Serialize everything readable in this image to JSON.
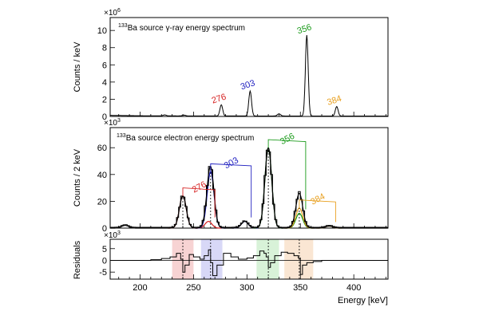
{
  "chart_data": [
    {
      "type": "line",
      "panel": "gamma",
      "title": "133Ba source γ-ray energy spectrum",
      "title_sup": "133",
      "title_rest": "Ba source γ-ray energy spectrum",
      "ylabel": "Counts / keV",
      "y_exponent": "×10",
      "y_exponent_power": "6",
      "xlim": [
        172,
        432
      ],
      "ylim": [
        0,
        11.5
      ],
      "yticks": [
        0,
        2,
        4,
        6,
        8,
        10
      ],
      "peaks": [
        {
          "energy": 276,
          "height": 1.3,
          "label": "276",
          "color": "#d62020"
        },
        {
          "energy": 303,
          "height": 2.9,
          "label": "303",
          "color": "#2020c0"
        },
        {
          "energy": 356,
          "height": 9.4,
          "label": "356",
          "color": "#1a9a1a"
        },
        {
          "energy": 384,
          "height": 1.1,
          "label": "384",
          "color": "#e8a020"
        }
      ],
      "minor_peaks": [
        {
          "energy": 223,
          "height": 0.12
        },
        {
          "energy": 241,
          "height": 0.1
        },
        {
          "energy": 330,
          "height": 0.25
        }
      ]
    },
    {
      "type": "line",
      "panel": "electron",
      "title_sup": "133",
      "title_rest": "Ba source electron energy spectrum",
      "ylabel": "Counts / 2 keV",
      "y_exponent": "×10",
      "y_exponent_power": "3",
      "xlim": [
        172,
        432
      ],
      "ylim": [
        0,
        75
      ],
      "yticks": [
        0,
        20,
        40,
        60
      ],
      "peaks": [
        {
          "energy": 240,
          "height": 24,
          "label": "276",
          "color": "#d62020"
        },
        {
          "energy": 266,
          "height": 42,
          "label": "303",
          "color": "#2020c0"
        },
        {
          "energy": 320,
          "height": 60,
          "label": "356",
          "color": "#1a9a1a"
        },
        {
          "energy": 349,
          "height": 15,
          "label": "384",
          "color": "#e8a020"
        }
      ],
      "secondary_peaks": [
        {
          "energy": 186,
          "height": 2,
          "color": "#000000"
        },
        {
          "energy": 264,
          "height": 5,
          "color": "#d62020"
        },
        {
          "energy": 298,
          "height": 5,
          "color": "#2020c0"
        },
        {
          "energy": 349,
          "height": 11,
          "color": "#1a9a1a"
        },
        {
          "energy": 377,
          "height": 1.5,
          "color": "#e8a020"
        }
      ],
      "dashed_lines": [
        240,
        266,
        320,
        349
      ]
    },
    {
      "type": "line",
      "panel": "residuals",
      "ylabel": "Residuals",
      "y_exponent": "×10",
      "y_exponent_power": "3",
      "xlabel": "Energy [keV]",
      "xlim": [
        172,
        432
      ],
      "ylim": [
        -8,
        9
      ],
      "yticks": [
        -5,
        0,
        5
      ],
      "xticks": [
        200,
        250,
        300,
        350,
        400
      ],
      "bands": [
        {
          "from": 230,
          "to": 250,
          "color": "#f4c0c0"
        },
        {
          "from": 257,
          "to": 277,
          "color": "#c8c8f4"
        },
        {
          "from": 309,
          "to": 330,
          "color": "#c8ecc8"
        },
        {
          "from": 335,
          "to": 362,
          "color": "#f8dcc0"
        }
      ],
      "dashed_lines": [
        240,
        266,
        320,
        349
      ],
      "x": [
        172,
        200,
        210,
        220,
        228,
        234,
        238,
        240,
        242,
        246,
        250,
        256,
        260,
        264,
        266,
        268,
        272,
        278,
        285,
        292,
        300,
        306,
        312,
        316,
        318,
        320,
        322,
        326,
        332,
        338,
        344,
        348,
        350,
        352,
        356,
        362,
        370,
        380,
        400,
        432
      ],
      "y": [
        0,
        0,
        0.3,
        0.8,
        1.5,
        3,
        0.5,
        -5,
        -2,
        2.5,
        1.5,
        0.5,
        2,
        4.5,
        -1,
        -6.5,
        -2,
        3,
        1.5,
        0.5,
        1,
        2,
        4,
        3,
        1.5,
        -3,
        -1,
        2,
        3.5,
        3,
        2,
        1,
        -6,
        -2,
        -1,
        -0.5,
        0,
        0,
        0,
        0
      ]
    }
  ]
}
